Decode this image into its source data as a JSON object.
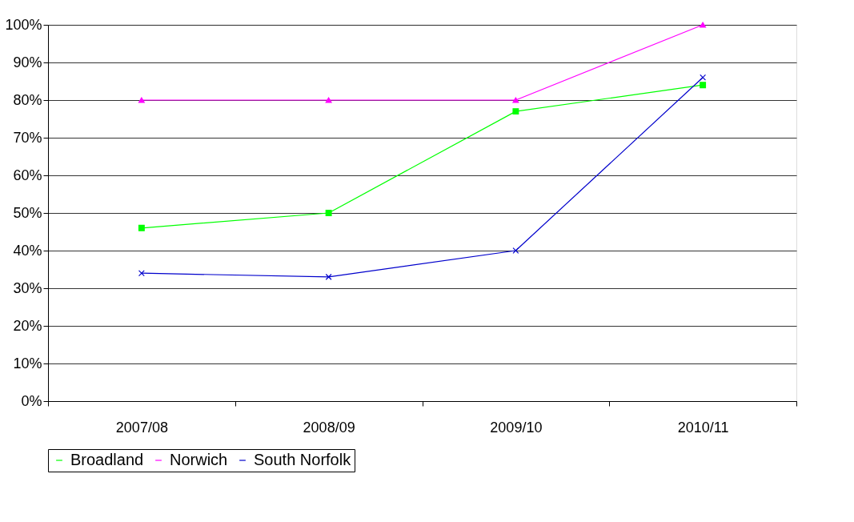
{
  "chart_data": {
    "type": "line",
    "categories": [
      "2007/08",
      "2008/09",
      "2009/10",
      "2010/11"
    ],
    "series": [
      {
        "name": "Broadland",
        "color": "#00ff00",
        "marker": "square",
        "values": [
          46,
          50,
          77,
          84
        ]
      },
      {
        "name": "Norwich",
        "color": "#ff00ff",
        "marker": "triangle",
        "values": [
          80,
          80,
          80,
          100
        ]
      },
      {
        "name": "South Norfolk",
        "color": "#0000cc",
        "marker": "cross",
        "values": [
          34,
          33,
          40,
          86
        ]
      }
    ],
    "ylim": [
      0,
      100
    ],
    "yticks": [
      {
        "value": 0,
        "label": "0%"
      },
      {
        "value": 10,
        "label": "10%"
      },
      {
        "value": 20,
        "label": "20%"
      },
      {
        "value": 30,
        "label": "30%"
      },
      {
        "value": 40,
        "label": "40%"
      },
      {
        "value": 50,
        "label": "50%"
      },
      {
        "value": 60,
        "label": "60%"
      },
      {
        "value": 70,
        "label": "70%"
      },
      {
        "value": 80,
        "label": "80%"
      },
      {
        "value": 90,
        "label": "90%"
      },
      {
        "value": 100,
        "label": "100%"
      }
    ],
    "grid": "y",
    "legend": "bottom",
    "line_style": "solid"
  }
}
